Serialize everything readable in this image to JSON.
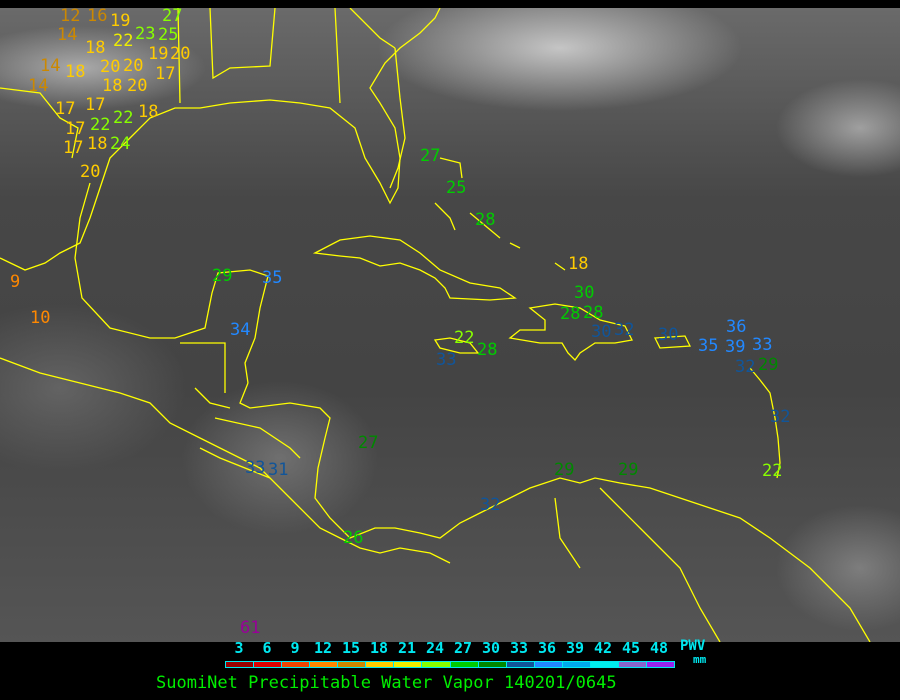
{
  "legend": {
    "unit_label": "PWV",
    "unit": "mm",
    "ticks": [
      "3",
      "6",
      "9",
      "12",
      "15",
      "18",
      "21",
      "24",
      "27",
      "30",
      "33",
      "36",
      "39",
      "42",
      "45",
      "48"
    ],
    "colors": [
      "#990000",
      "#dd0000",
      "#ee4400",
      "#ff8800",
      "#cc8800",
      "#ffcc00",
      "#eeee00",
      "#88ff00",
      "#00cc00",
      "#008800",
      "#115599",
      "#2288ff",
      "#00aaee",
      "#00eeee",
      "#8866cc",
      "#9922ee",
      "#990099"
    ]
  },
  "title": "SuomiNet Precipitable Water Vapor 140201/0645",
  "coastline_color": "#ffff00",
  "stations": [
    {
      "v": "12",
      "c": "#cc8800"
    },
    {
      "v": "16",
      "c": "#cc8800"
    },
    {
      "v": "14",
      "c": "#cc8800"
    },
    {
      "v": "19",
      "c": "#ffcc00"
    },
    {
      "v": "22",
      "c": "#eeee00"
    },
    {
      "v": "23",
      "c": "#88ff00"
    },
    {
      "v": "25",
      "c": "#88ff00"
    },
    {
      "v": "27",
      "c": "#88ff00"
    },
    {
      "v": "18",
      "c": "#ffcc00"
    },
    {
      "v": "19",
      "c": "#ffcc00"
    },
    {
      "v": "20",
      "c": "#ffcc00"
    },
    {
      "v": "14",
      "c": "#cc8800"
    },
    {
      "v": "18",
      "c": "#ffcc00"
    },
    {
      "v": "20",
      "c": "#ffcc00"
    },
    {
      "v": "20",
      "c": "#ffcc00"
    },
    {
      "v": "17",
      "c": "#ffcc00"
    },
    {
      "v": "18",
      "c": "#ffcc00"
    },
    {
      "v": "20",
      "c": "#ffcc00"
    },
    {
      "v": "14",
      "c": "#cc8800"
    },
    {
      "v": "17",
      "c": "#ffcc00"
    },
    {
      "v": "17",
      "c": "#ffcc00"
    },
    {
      "v": "22",
      "c": "#88ff00"
    },
    {
      "v": "18",
      "c": "#ffcc00"
    },
    {
      "v": "17",
      "c": "#ffcc00"
    },
    {
      "v": "22",
      "c": "#88ff00"
    },
    {
      "v": "18",
      "c": "#ffcc00"
    },
    {
      "v": "24",
      "c": "#88ff00"
    },
    {
      "v": "17",
      "c": "#ffcc00"
    },
    {
      "v": "20",
      "c": "#ffcc00"
    },
    {
      "v": "9",
      "c": "#ff8800"
    },
    {
      "v": "10",
      "c": "#ff8800"
    },
    {
      "v": "27",
      "c": "#00cc00"
    },
    {
      "v": "25",
      "c": "#00cc00"
    },
    {
      "v": "28",
      "c": "#00cc00"
    },
    {
      "v": "18",
      "c": "#ffcc00"
    },
    {
      "v": "29",
      "c": "#00cc00"
    },
    {
      "v": "35",
      "c": "#2288ff"
    },
    {
      "v": "34",
      "c": "#2288ff"
    },
    {
      "v": "30",
      "c": "#00cc00"
    },
    {
      "v": "28",
      "c": "#00cc00"
    },
    {
      "v": "28",
      "c": "#00cc00"
    },
    {
      "v": "30",
      "c": "#115599"
    },
    {
      "v": "32",
      "c": "#115599"
    },
    {
      "v": "22",
      "c": "#88ff00"
    },
    {
      "v": "28",
      "c": "#00cc00"
    },
    {
      "v": "33",
      "c": "#115599"
    },
    {
      "v": "30",
      "c": "#115599"
    },
    {
      "v": "35",
      "c": "#2288ff"
    },
    {
      "v": "36",
      "c": "#2288ff"
    },
    {
      "v": "39",
      "c": "#2288ff"
    },
    {
      "v": "33",
      "c": "#2288ff"
    },
    {
      "v": "29",
      "c": "#008800"
    },
    {
      "v": "32",
      "c": "#115599"
    },
    {
      "v": "32",
      "c": "#115599"
    },
    {
      "v": "22",
      "c": "#88ff00"
    },
    {
      "v": "27",
      "c": "#008800"
    },
    {
      "v": "33",
      "c": "#115599"
    },
    {
      "v": "31",
      "c": "#115599"
    },
    {
      "v": "26",
      "c": "#00cc00"
    },
    {
      "v": "29",
      "c": "#008800"
    },
    {
      "v": "29",
      "c": "#008800"
    },
    {
      "v": "32",
      "c": "#115599"
    },
    {
      "v": "61",
      "c": "#990099"
    }
  ]
}
